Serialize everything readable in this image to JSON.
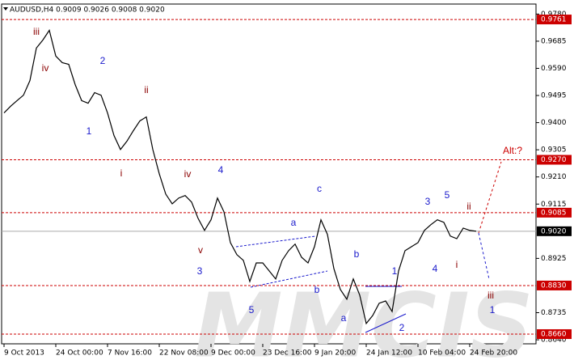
{
  "chart_data": {
    "type": "line",
    "title": "AUDUSD,H4  0.9009 0.9026 0.9008 0.9020",
    "watermark": "MMCIS",
    "categories": [
      "9 Oct 2013",
      null,
      null,
      null,
      null,
      null,
      null,
      null,
      "24 Oct 00:00",
      null,
      null,
      null,
      null,
      null,
      null,
      null,
      "7 Nov 16:00",
      null,
      null,
      null,
      null,
      null,
      null,
      null,
      "22 Nov 08:00",
      null,
      null,
      null,
      null,
      null,
      null,
      null,
      "9 Dec 00:00",
      null,
      null,
      null,
      null,
      null,
      null,
      null,
      "23 Dec 16:00",
      null,
      null,
      null,
      null,
      null,
      null,
      null,
      "9 Jan 20:00",
      null,
      null,
      null,
      null,
      null,
      null,
      null,
      "24 Jan 12:00",
      null,
      null,
      null,
      null,
      null,
      null,
      null,
      "10 Feb 04:00",
      null,
      null,
      null,
      null,
      null,
      null,
      null,
      "24 Feb 20:00",
      null,
      null,
      null,
      null,
      null,
      null,
      null,
      null,
      null,
      null
    ],
    "series": [
      {
        "name": "AUDUSD,H4",
        "color": "#000000",
        "values": [
          0.9434,
          0.9457,
          0.9477,
          0.9496,
          0.9547,
          0.9661,
          0.9689,
          0.9723,
          0.9633,
          0.961,
          0.9604,
          0.9533,
          0.9477,
          0.9468,
          0.9505,
          0.9496,
          0.9434,
          0.9355,
          0.9306,
          0.9335,
          0.9372,
          0.9406,
          0.942,
          0.9306,
          0.9221,
          0.915,
          0.9116,
          0.9136,
          0.9145,
          0.9122,
          0.9065,
          0.9023,
          0.906,
          0.9136,
          0.9088,
          0.898,
          0.8938,
          0.8918,
          0.8844,
          0.8909,
          0.8909,
          0.8881,
          0.8853,
          0.8918,
          0.8952,
          0.8975,
          0.8929,
          0.8909,
          0.8966,
          0.906,
          0.9009,
          0.8889,
          0.8816,
          0.8782,
          0.8853,
          0.8796,
          0.8697,
          0.8725,
          0.8768,
          0.8776,
          0.8739,
          0.8881,
          0.8952,
          0.8966,
          0.898,
          0.9023,
          0.9043,
          0.906,
          0.9051,
          0.9003,
          0.8994,
          0.9031,
          0.9023,
          0.902,
          null,
          null,
          null,
          null,
          null,
          null,
          null,
          null,
          null
        ]
      }
    ],
    "ylim": [
      0.8626,
      0.9815
    ],
    "yticks": [
      {
        "value": 0.978,
        "label": "0.9780"
      },
      {
        "value": 0.9685,
        "label": "0.9685"
      },
      {
        "value": 0.959,
        "label": "0.9590"
      },
      {
        "value": 0.9495,
        "label": "0.9495"
      },
      {
        "value": 0.94,
        "label": "0.9400"
      },
      {
        "value": 0.9305,
        "label": "0.9305"
      },
      {
        "value": 0.921,
        "label": "0.9210"
      },
      {
        "value": 0.9115,
        "label": "0.9115"
      },
      {
        "value": 0.8925,
        "label": "0.8925"
      },
      {
        "value": 0.8735,
        "label": "0.8735"
      },
      {
        "value": 0.864,
        "label": "0.8640"
      }
    ],
    "levels": [
      {
        "value": 0.9761,
        "label": "0.9761"
      },
      {
        "value": 0.927,
        "label": "0.9270"
      },
      {
        "value": 0.9085,
        "label": "0.9085"
      },
      {
        "value": 0.883,
        "label": "0.8830"
      },
      {
        "value": 0.866,
        "label": "0.8660"
      }
    ],
    "level_color": "#cc0000",
    "current": {
      "value": 0.902,
      "label": "0.9020"
    },
    "annotations": [
      {
        "text": "iii",
        "color": "#8b0000"
      },
      {
        "text": "iv",
        "color": "#8b0000"
      },
      {
        "text": "2",
        "color": "#1a1acc"
      },
      {
        "text": "1",
        "color": "#1a1acc"
      },
      {
        "text": "ii",
        "color": "#8b0000"
      },
      {
        "text": "i",
        "color": "#8b0000"
      },
      {
        "text": "iv",
        "color": "#8b0000"
      },
      {
        "text": "4",
        "color": "#1a1acc"
      },
      {
        "text": "v",
        "color": "#8b0000"
      },
      {
        "text": "3",
        "color": "#1a1acc"
      },
      {
        "text": "5",
        "color": "#1a1acc"
      },
      {
        "text": "a",
        "color": "#1a1acc"
      },
      {
        "text": "b",
        "color": "#1a1acc"
      },
      {
        "text": "c",
        "color": "#1a1acc"
      },
      {
        "text": "b",
        "color": "#1a1acc"
      },
      {
        "text": "a",
        "color": "#1a1acc"
      },
      {
        "text": "2",
        "color": "#1a1acc"
      },
      {
        "text": "1",
        "color": "#1a1acc"
      },
      {
        "text": "3",
        "color": "#1a1acc"
      },
      {
        "text": "5",
        "color": "#1a1acc"
      },
      {
        "text": "4",
        "color": "#1a1acc"
      },
      {
        "text": "ii",
        "color": "#8b0000"
      },
      {
        "text": "i",
        "color": "#8b0000"
      },
      {
        "text": "iii",
        "color": "#8b0000"
      },
      {
        "text": "1",
        "color": "#1a1acc"
      },
      {
        "text": "Alt:?",
        "color": "#cc0000"
      }
    ]
  }
}
